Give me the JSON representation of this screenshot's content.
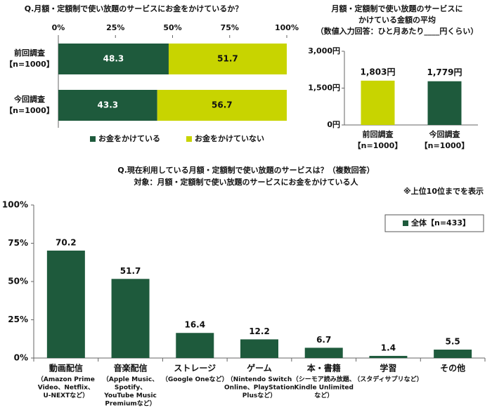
{
  "chart_data": [
    {
      "type": "bar",
      "orientation": "horizontal",
      "stacked": true,
      "title": "Q.月額・定額制で使い放題のサービスにお金をかけているか？",
      "categories": [
        [
          "前回調査",
          "【n=1000】"
        ],
        [
          "今回調査",
          "【n=1000】"
        ]
      ],
      "series": [
        {
          "name": "お金をかけている",
          "color": "#1e5a3c",
          "values": [
            48.3,
            43.3
          ]
        },
        {
          "name": "お金をかけていない",
          "color": "#c8d400",
          "values": [
            51.7,
            56.7
          ]
        }
      ],
      "xlim": [
        0,
        100
      ],
      "xticks": [
        {
          "value": 0,
          "label": "0%"
        },
        {
          "value": 25,
          "label": "25%"
        },
        {
          "value": 50,
          "label": "50%"
        },
        {
          "value": 75,
          "label": "75%"
        },
        {
          "value": 100,
          "label": "100%"
        }
      ],
      "legend": "bottom"
    },
    {
      "type": "bar",
      "title": [
        "月額・定額制で使い放題のサービスに",
        "かけている金額の平均",
        "（数値入力回答：ひと月あたり____円くらい）"
      ],
      "categories": [
        [
          "前回調査",
          "【n=1000】"
        ],
        [
          "今回調査",
          "【n=1000】"
        ]
      ],
      "values": [
        1803,
        1779
      ],
      "value_labels": [
        "1,803円",
        "1,779円"
      ],
      "colors": [
        "#c8d400",
        "#1e5a3c"
      ],
      "ylim": [
        0,
        3000
      ],
      "yticks": [
        {
          "value": 0,
          "label": "0円"
        },
        {
          "value": 1500,
          "label": "1,500円"
        },
        {
          "value": 3000,
          "label": "3,000円"
        }
      ]
    },
    {
      "type": "bar",
      "title": [
        "Q.現在利用している月額・定額制で使い放題のサービスは？（複数回答）",
        "対象：月額・定額制で使い放題のサービスにお金をかけている人"
      ],
      "note": "※上位10位までを表示",
      "categories": [
        [
          "動画配信",
          "（Amazon Prime",
          "Video、Netflix、",
          "U-NEXTなど）"
        ],
        [
          "音楽配信",
          "（Apple Music、",
          "Spotify、",
          "YouTube Music",
          "Premiumなど）"
        ],
        [
          "ストレージ",
          "（Google Oneなど）"
        ],
        [
          "ゲーム",
          "（Nintendo Switch",
          "Online、PlayStation",
          "Plusなど）"
        ],
        [
          "本・書籍",
          "（シーモア読み放題、",
          "Kindle Unlimited",
          "など）"
        ],
        [
          "学習",
          "（スタディサプリなど）"
        ],
        [
          "その他"
        ]
      ],
      "series": [
        {
          "name": "全体【n=433】",
          "color": "#1e5a3c",
          "values": [
            70.2,
            51.7,
            16.4,
            12.2,
            6.7,
            1.4,
            5.5
          ]
        }
      ],
      "ylim": [
        0,
        100
      ],
      "yticks": [
        {
          "value": 0,
          "label": "0%"
        },
        {
          "value": 25,
          "label": "25%"
        },
        {
          "value": 50,
          "label": "50%"
        },
        {
          "value": 75,
          "label": "75%"
        },
        {
          "value": 100,
          "label": "100%"
        }
      ],
      "legend": "top-right"
    }
  ]
}
